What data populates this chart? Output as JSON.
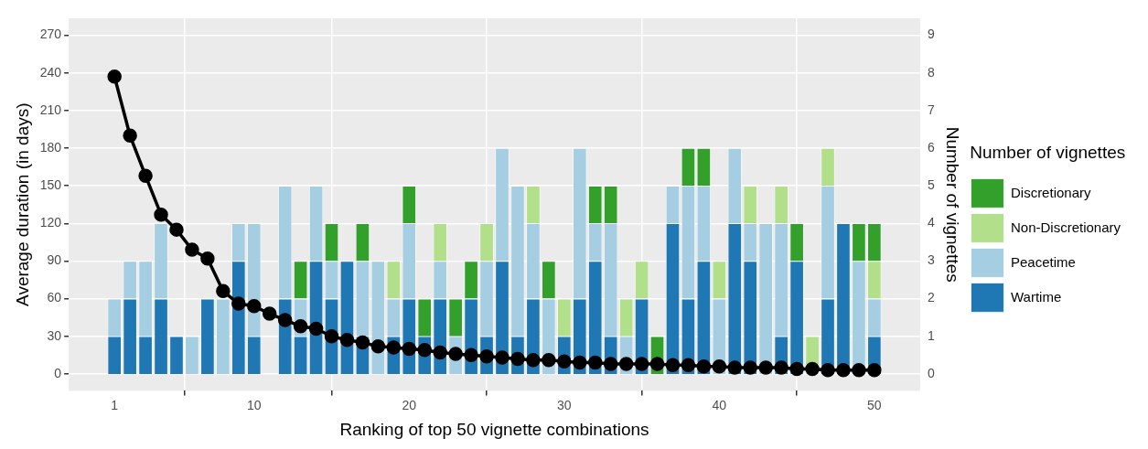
{
  "chart_data": {
    "type": "bar",
    "stacked": true,
    "xlabel": "Ranking of top 50 vignette combinations",
    "ylabel": "Average duration (in days)",
    "y2label": "Number of vignettes",
    "legend_title": "Number of vignettes",
    "legend": "right",
    "grid": true,
    "x": [
      1,
      2,
      3,
      4,
      5,
      6,
      7,
      8,
      9,
      10,
      11,
      12,
      13,
      14,
      15,
      16,
      17,
      18,
      19,
      20,
      21,
      22,
      23,
      24,
      25,
      26,
      27,
      28,
      29,
      30,
      31,
      32,
      33,
      34,
      35,
      36,
      37,
      38,
      39,
      40,
      41,
      42,
      43,
      44,
      45,
      46,
      47,
      48,
      49,
      50
    ],
    "xlim": [
      -1.95,
      52.95
    ],
    "xticks": [
      1,
      10,
      20,
      30,
      40,
      50
    ],
    "ylim": [
      -13.5,
      283.5
    ],
    "yticks": [
      0,
      30,
      60,
      90,
      120,
      150,
      180,
      210,
      240,
      270
    ],
    "y2lim": [
      -0.45,
      9.45
    ],
    "y2ticks": [
      0,
      1,
      2,
      3,
      4,
      5,
      6,
      7,
      8,
      9
    ],
    "series": [
      {
        "name": "Wartime",
        "color": "#1f78b4",
        "axis": "y2",
        "values": [
          1,
          2,
          1,
          2,
          1,
          0,
          2,
          0,
          3,
          1,
          0,
          2,
          1,
          3,
          2,
          3,
          1,
          0,
          1,
          2,
          1,
          2,
          0,
          2,
          1,
          3,
          1,
          2,
          0,
          1,
          2,
          3,
          1,
          0,
          2,
          0,
          4,
          2,
          3,
          0,
          4,
          3,
          0,
          1,
          3,
          0,
          2,
          4,
          0,
          1
        ]
      },
      {
        "name": "Peacetime",
        "color": "#a6cee3",
        "axis": "y2",
        "values": [
          1,
          1,
          2,
          2,
          0,
          1,
          0,
          2,
          1,
          3,
          0,
          3,
          1,
          2,
          1,
          0,
          2,
          3,
          1,
          2,
          0,
          1,
          1,
          0,
          2,
          3,
          4,
          2,
          2,
          0,
          4,
          1,
          3,
          1,
          0,
          0,
          1,
          3,
          2,
          2,
          2,
          1,
          4,
          3,
          0,
          0,
          3,
          0,
          3,
          1
        ]
      },
      {
        "name": "Non-Discretionary",
        "color": "#b2df8a",
        "axis": "y2",
        "values": [
          0,
          0,
          0,
          0,
          0,
          0,
          0,
          0,
          0,
          0,
          0,
          0,
          0,
          0,
          0,
          0,
          0,
          0,
          1,
          0,
          0,
          1,
          0,
          0,
          1,
          0,
          0,
          1,
          0,
          1,
          0,
          0,
          0,
          1,
          1,
          0,
          0,
          0,
          0,
          1,
          0,
          1,
          0,
          1,
          0,
          1,
          1,
          0,
          0,
          1
        ]
      },
      {
        "name": "Discretionary",
        "color": "#33a02c",
        "axis": "y2",
        "values": [
          0,
          0,
          0,
          0,
          0,
          0,
          0,
          0,
          0,
          0,
          0,
          0,
          1,
          0,
          1,
          0,
          1,
          0,
          0,
          1,
          1,
          0,
          1,
          1,
          0,
          0,
          0,
          0,
          1,
          0,
          0,
          1,
          1,
          0,
          0,
          1,
          0,
          1,
          1,
          0,
          0,
          0,
          0,
          0,
          1,
          0,
          0,
          0,
          1,
          1
        ]
      },
      {
        "type": "line",
        "color": "#000000",
        "axis": "y",
        "marker": "circle",
        "line_style": "solid",
        "values": [
          237,
          190,
          158,
          127,
          115,
          99,
          92,
          66,
          56,
          54,
          48,
          43,
          38,
          36,
          30,
          27,
          25,
          22,
          21,
          20,
          19,
          17,
          16,
          15,
          14,
          13,
          12,
          11,
          11,
          10,
          9,
          9,
          8,
          8,
          8,
          8,
          7,
          7,
          6,
          6,
          5,
          5,
          5,
          5,
          4,
          4,
          3,
          3,
          3,
          3
        ]
      }
    ]
  }
}
